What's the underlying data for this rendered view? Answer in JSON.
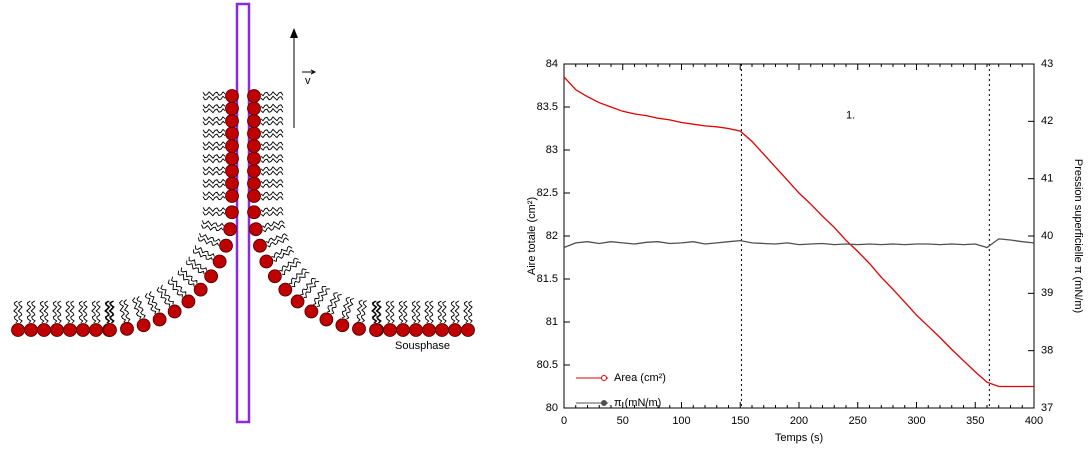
{
  "diagram": {
    "velocity_label": "v",
    "subphase_label": "Sousphase"
  },
  "chart_data": {
    "type": "line",
    "x_label": "Temps (s)",
    "y_label": "Aire totale (cm²)",
    "y2_label": "Pression superficielle π (mN/m)",
    "annotation": "1.",
    "x": [
      0,
      10,
      20,
      30,
      40,
      50,
      60,
      70,
      80,
      90,
      100,
      110,
      120,
      130,
      140,
      150,
      160,
      170,
      180,
      190,
      200,
      210,
      220,
      230,
      240,
      250,
      260,
      270,
      280,
      290,
      300,
      310,
      320,
      330,
      340,
      350,
      360,
      370,
      380,
      390,
      400
    ],
    "series": [
      {
        "name": "Area (cm²)",
        "color": "#e00000",
        "values": [
          83.85,
          83.7,
          83.62,
          83.55,
          83.5,
          83.45,
          83.42,
          83.4,
          83.37,
          83.35,
          83.32,
          83.3,
          83.28,
          83.27,
          83.25,
          83.22,
          83.1,
          82.95,
          82.8,
          82.65,
          82.5,
          82.37,
          82.23,
          82.1,
          81.95,
          81.82,
          81.68,
          81.52,
          81.38,
          81.23,
          81.08,
          80.95,
          80.82,
          80.68,
          80.55,
          80.42,
          80.3,
          80.25,
          80.25,
          80.25,
          80.25
        ]
      },
      {
        "name": "π (mN/m)",
        "color": "#505050",
        "axis": "y2",
        "values": [
          39.8,
          39.88,
          39.9,
          39.87,
          39.9,
          39.88,
          39.86,
          39.89,
          39.9,
          39.87,
          39.88,
          39.9,
          39.86,
          39.88,
          39.9,
          39.92,
          39.88,
          39.87,
          39.86,
          39.88,
          39.85,
          39.86,
          39.87,
          39.85,
          39.86,
          39.85,
          39.86,
          39.85,
          39.86,
          39.85,
          39.86,
          39.86,
          39.85,
          39.86,
          39.85,
          39.86,
          39.8,
          39.95,
          39.93,
          39.9,
          39.88
        ]
      }
    ],
    "xlim": [
      0,
      400
    ],
    "xticks": [
      0,
      50,
      100,
      150,
      200,
      250,
      300,
      350,
      400
    ],
    "ylim": [
      80,
      84
    ],
    "yticks": [
      80,
      80.5,
      81,
      81.5,
      82,
      82.5,
      83,
      83.5,
      84
    ],
    "y2lim": [
      37,
      43
    ],
    "y2ticks": [
      37,
      38,
      39,
      40,
      41,
      42,
      43
    ],
    "vlines": [
      151,
      362
    ],
    "legend": "lower-left"
  }
}
